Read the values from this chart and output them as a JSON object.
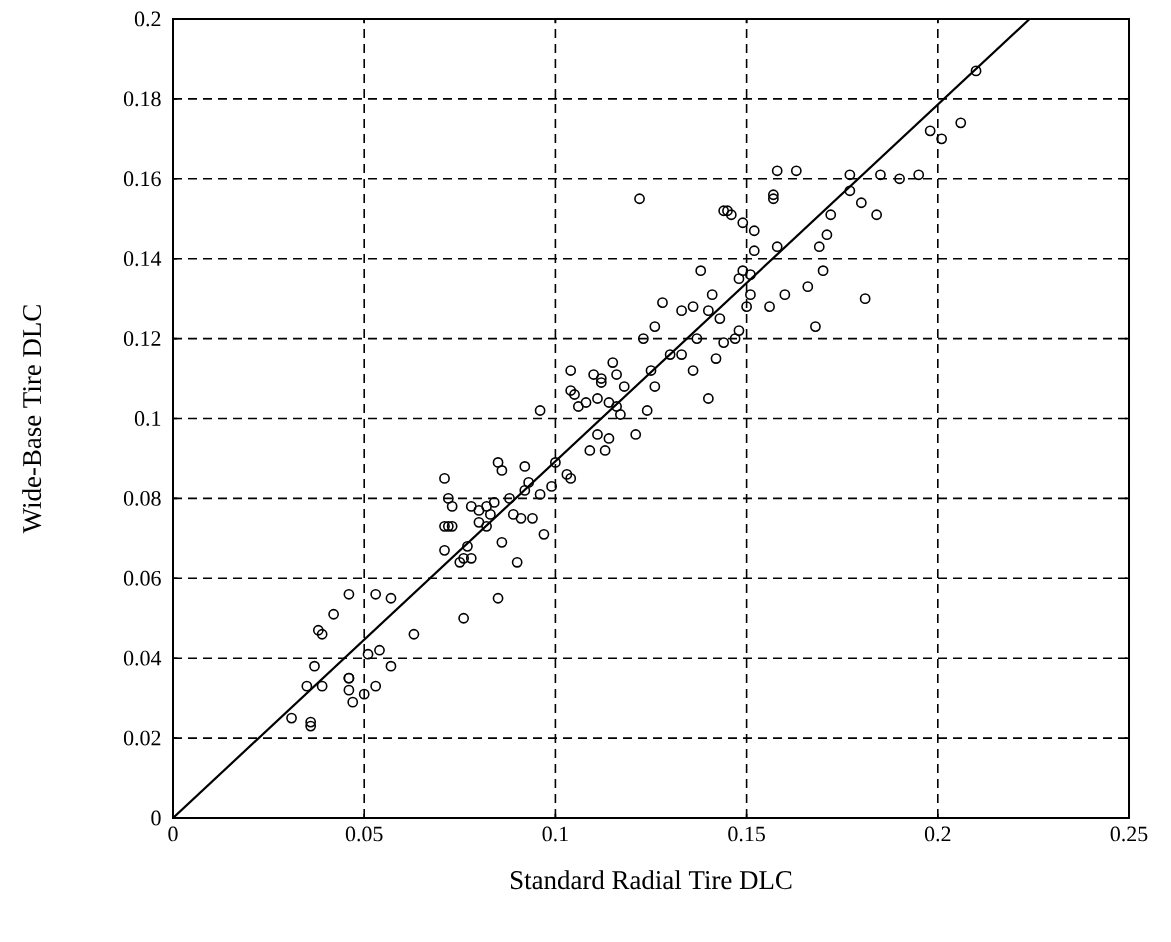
{
  "chart_data": {
    "type": "scatter",
    "xlabel": "Standard Radial Tire DLC",
    "ylabel": "Wide-Base Tire DLC",
    "xlim": [
      0,
      0.25
    ],
    "ylim": [
      0,
      0.2
    ],
    "xticks": [
      0,
      0.05,
      0.1,
      0.15,
      0.2,
      0.25
    ],
    "yticks": [
      0,
      0.02,
      0.04,
      0.06,
      0.08,
      0.1,
      0.12,
      0.14,
      0.16,
      0.18,
      0.2
    ],
    "grid": true,
    "series": [
      {
        "marker": "circle",
        "color": "#000000",
        "x": [
          0.031,
          0.036,
          0.036,
          0.035,
          0.037,
          0.039,
          0.038,
          0.039,
          0.042,
          0.046,
          0.046,
          0.046,
          0.046,
          0.047,
          0.05,
          0.051,
          0.053,
          0.054,
          0.053,
          0.057,
          0.057,
          0.063,
          0.071,
          0.071,
          0.072,
          0.073,
          0.071,
          0.072,
          0.073,
          0.075,
          0.076,
          0.077,
          0.076,
          0.078,
          0.078,
          0.08,
          0.08,
          0.082,
          0.082,
          0.084,
          0.083,
          0.085,
          0.086,
          0.085,
          0.086,
          0.088,
          0.089,
          0.09,
          0.091,
          0.092,
          0.092,
          0.093,
          0.094,
          0.096,
          0.096,
          0.097,
          0.099,
          0.1,
          0.103,
          0.104,
          0.104,
          0.104,
          0.105,
          0.106,
          0.108,
          0.109,
          0.11,
          0.111,
          0.111,
          0.112,
          0.112,
          0.113,
          0.114,
          0.114,
          0.115,
          0.116,
          0.116,
          0.117,
          0.118,
          0.121,
          0.122,
          0.123,
          0.124,
          0.125,
          0.126,
          0.126,
          0.128,
          0.13,
          0.133,
          0.133,
          0.136,
          0.136,
          0.137,
          0.138,
          0.14,
          0.14,
          0.141,
          0.142,
          0.143,
          0.144,
          0.144,
          0.145,
          0.146,
          0.147,
          0.148,
          0.148,
          0.149,
          0.149,
          0.15,
          0.151,
          0.151,
          0.152,
          0.152,
          0.156,
          0.157,
          0.157,
          0.158,
          0.158,
          0.16,
          0.163,
          0.166,
          0.168,
          0.169,
          0.17,
          0.171,
          0.172,
          0.177,
          0.177,
          0.18,
          0.181,
          0.184,
          0.185,
          0.19,
          0.195,
          0.198,
          0.201,
          0.206,
          0.21
        ],
        "values": [
          0.025,
          0.023,
          0.024,
          0.033,
          0.038,
          0.033,
          0.047,
          0.046,
          0.051,
          0.056,
          0.035,
          0.035,
          0.032,
          0.029,
          0.031,
          0.041,
          0.056,
          0.042,
          0.033,
          0.055,
          0.038,
          0.046,
          0.067,
          0.073,
          0.073,
          0.073,
          0.085,
          0.08,
          0.078,
          0.064,
          0.065,
          0.068,
          0.05,
          0.065,
          0.078,
          0.077,
          0.074,
          0.073,
          0.078,
          0.079,
          0.076,
          0.089,
          0.087,
          0.055,
          0.069,
          0.08,
          0.076,
          0.064,
          0.075,
          0.082,
          0.088,
          0.084,
          0.075,
          0.102,
          0.081,
          0.071,
          0.083,
          0.089,
          0.086,
          0.085,
          0.112,
          0.107,
          0.106,
          0.103,
          0.104,
          0.092,
          0.111,
          0.105,
          0.096,
          0.11,
          0.109,
          0.092,
          0.095,
          0.104,
          0.114,
          0.111,
          0.103,
          0.101,
          0.108,
          0.096,
          0.155,
          0.12,
          0.102,
          0.112,
          0.108,
          0.123,
          0.129,
          0.116,
          0.127,
          0.116,
          0.128,
          0.112,
          0.12,
          0.137,
          0.105,
          0.127,
          0.131,
          0.115,
          0.125,
          0.119,
          0.152,
          0.152,
          0.151,
          0.12,
          0.122,
          0.135,
          0.137,
          0.149,
          0.128,
          0.131,
          0.136,
          0.147,
          0.142,
          0.128,
          0.156,
          0.155,
          0.162,
          0.143,
          0.131,
          0.162,
          0.133,
          0.123,
          0.143,
          0.137,
          0.146,
          0.151,
          0.161,
          0.157,
          0.154,
          0.13,
          0.151,
          0.161,
          0.16,
          0.161,
          0.172,
          0.17,
          0.174,
          0.187
        ]
      },
      {
        "type": "line",
        "marker": "none",
        "line_style": "solid",
        "color": "#000000",
        "x": [
          0,
          0.224
        ],
        "values": [
          0,
          0.2
        ]
      }
    ]
  }
}
